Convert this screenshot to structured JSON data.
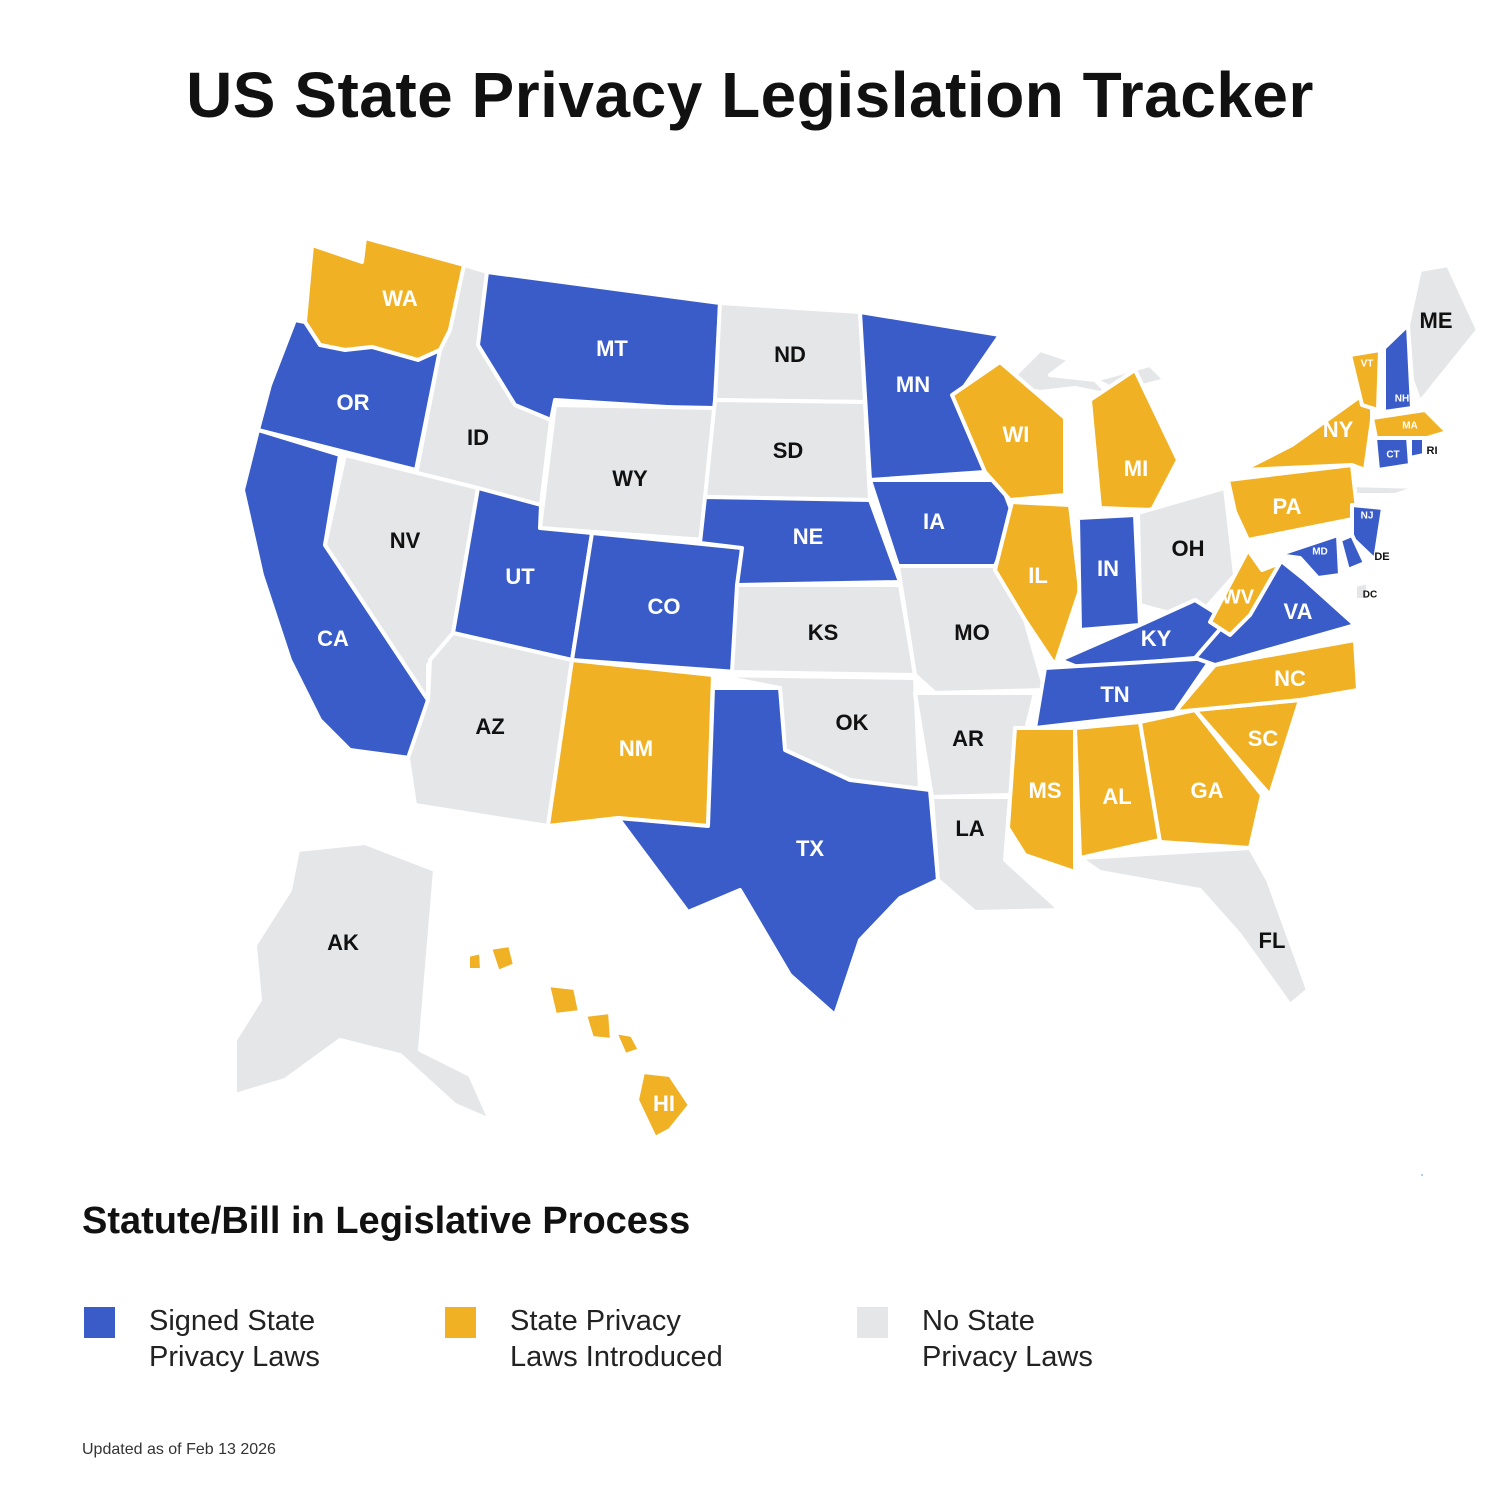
{
  "title": "US State Privacy Legislation Tracker",
  "colors": {
    "signed": "#3a5cc8",
    "introduced": "#f1b125",
    "none": "#e5e6e8"
  },
  "states": [
    {
      "code": "WA",
      "status": "introduced"
    },
    {
      "code": "OR",
      "status": "signed"
    },
    {
      "code": "CA",
      "status": "signed"
    },
    {
      "code": "ID",
      "status": "none"
    },
    {
      "code": "NV",
      "status": "none"
    },
    {
      "code": "MT",
      "status": "signed"
    },
    {
      "code": "WY",
      "status": "none"
    },
    {
      "code": "UT",
      "status": "signed"
    },
    {
      "code": "AZ",
      "status": "none"
    },
    {
      "code": "CO",
      "status": "signed"
    },
    {
      "code": "NM",
      "status": "introduced"
    },
    {
      "code": "ND",
      "status": "none"
    },
    {
      "code": "SD",
      "status": "none"
    },
    {
      "code": "NE",
      "status": "signed"
    },
    {
      "code": "KS",
      "status": "none"
    },
    {
      "code": "OK",
      "status": "none"
    },
    {
      "code": "TX",
      "status": "signed"
    },
    {
      "code": "MN",
      "status": "signed"
    },
    {
      "code": "IA",
      "status": "signed"
    },
    {
      "code": "MO",
      "status": "none"
    },
    {
      "code": "AR",
      "status": "none"
    },
    {
      "code": "LA",
      "status": "none"
    },
    {
      "code": "WI",
      "status": "introduced"
    },
    {
      "code": "IL",
      "status": "introduced"
    },
    {
      "code": "MI",
      "status": "introduced"
    },
    {
      "code": "IN",
      "status": "signed"
    },
    {
      "code": "OH",
      "status": "none"
    },
    {
      "code": "KY",
      "status": "signed"
    },
    {
      "code": "TN",
      "status": "signed"
    },
    {
      "code": "MS",
      "status": "introduced"
    },
    {
      "code": "AL",
      "status": "introduced"
    },
    {
      "code": "GA",
      "status": "introduced"
    },
    {
      "code": "FL",
      "status": "none"
    },
    {
      "code": "SC",
      "status": "introduced"
    },
    {
      "code": "NC",
      "status": "introduced"
    },
    {
      "code": "VA",
      "status": "signed"
    },
    {
      "code": "WV",
      "status": "introduced"
    },
    {
      "code": "PA",
      "status": "introduced"
    },
    {
      "code": "NY",
      "status": "introduced"
    },
    {
      "code": "NJ",
      "status": "signed"
    },
    {
      "code": "DE",
      "status": "signed"
    },
    {
      "code": "MD",
      "status": "signed"
    },
    {
      "code": "DC",
      "status": "none"
    },
    {
      "code": "CT",
      "status": "signed"
    },
    {
      "code": "RI",
      "status": "signed"
    },
    {
      "code": "MA",
      "status": "introduced"
    },
    {
      "code": "VT",
      "status": "introduced"
    },
    {
      "code": "NH",
      "status": "signed"
    },
    {
      "code": "ME",
      "status": "none"
    },
    {
      "code": "AK",
      "status": "none"
    },
    {
      "code": "HI",
      "status": "introduced"
    }
  ],
  "legend": {
    "title": "Statute/Bill in Legislative Process",
    "items": [
      {
        "status": "signed",
        "label": "Signed State\nPrivacy Laws"
      },
      {
        "status": "introduced",
        "label": "State Privacy\nLaws Introduced"
      },
      {
        "status": "none",
        "label": "No State\nPrivacy Laws"
      }
    ]
  },
  "footnote": "Updated as of Feb 13 2026"
}
